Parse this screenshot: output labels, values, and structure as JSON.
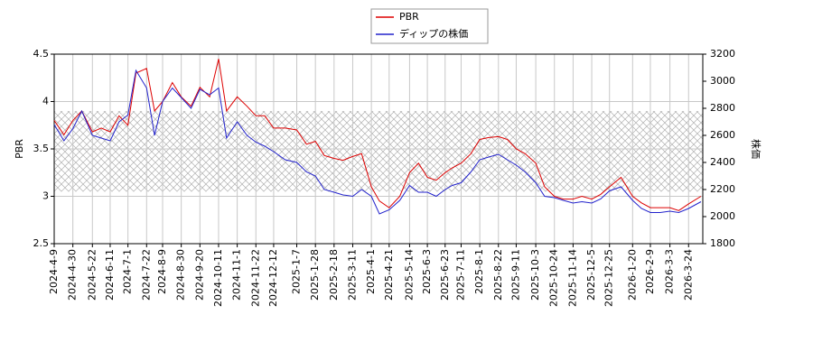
{
  "chart_data": {
    "type": "line",
    "x": [
      "2024-4-9",
      "2024-4-20",
      "2024-4-30",
      "2024-5-10",
      "2024-5-22",
      "2024-6-1",
      "2024-6-11",
      "2024-6-21",
      "2024-7-1",
      "2024-7-10",
      "2024-7-22",
      "2024-7-31",
      "2024-8-9",
      "2024-8-20",
      "2024-8-30",
      "2024-9-10",
      "2024-9-20",
      "2024-10-1",
      "2024-10-11",
      "2024-10-20",
      "2024-11-1",
      "2024-11-12",
      "2024-11-22",
      "2024-12-2",
      "2024-12-12",
      "2024-12-25",
      "2025-1-7",
      "2025-1-18",
      "2025-1-28",
      "2025-2-7",
      "2025-2-18",
      "2025-2-28",
      "2025-3-11",
      "2025-3-21",
      "2025-4-1",
      "2025-4-10",
      "2025-4-21",
      "2025-5-3",
      "2025-5-14",
      "2025-5-24",
      "2025-6-3",
      "2025-6-13",
      "2025-6-23",
      "2025-7-1",
      "2025-7-11",
      "2025-7-22",
      "2025-8-1",
      "2025-8-11",
      "2025-8-22",
      "2025-9-1",
      "2025-9-11",
      "2025-9-21",
      "2025-10-3",
      "2025-10-13",
      "2025-10-24",
      "2025-11-3",
      "2025-11-14",
      "2025-11-24",
      "2025-12-5",
      "2025-12-15",
      "2025-12-25",
      "2026-1-7",
      "2026-1-20",
      "2026-1-30",
      "2026-2-9",
      "2026-2-20",
      "2026-3-3",
      "2026-3-13",
      "2026-3-24",
      "2026-4-7"
    ],
    "series": [
      {
        "name": "PBR",
        "color": "#dd0000",
        "values": [
          3.8,
          3.65,
          3.8,
          3.9,
          3.68,
          3.72,
          3.68,
          3.85,
          3.75,
          4.3,
          4.35,
          3.9,
          4.0,
          4.2,
          4.05,
          3.95,
          4.15,
          4.05,
          4.45,
          3.9,
          4.05,
          3.95,
          3.85,
          3.85,
          3.72,
          3.72,
          3.7,
          3.55,
          3.58,
          3.43,
          3.4,
          3.38,
          3.42,
          3.45,
          3.1,
          2.95,
          2.88,
          3.0,
          3.25,
          3.35,
          3.2,
          3.17,
          3.25,
          3.3,
          3.35,
          3.45,
          3.6,
          3.62,
          3.63,
          3.6,
          3.5,
          3.45,
          3.35,
          3.1,
          3.0,
          2.97,
          2.97,
          3.0,
          2.97,
          3.02,
          3.1,
          3.2,
          3.0,
          2.93,
          2.88,
          2.88,
          2.88,
          2.85,
          2.92,
          3.0
        ]
      },
      {
        "name": "ディップの株価",
        "color": "#2222cc",
        "axis": "y2",
        "values": [
          2680,
          2560,
          2650,
          2780,
          2600,
          2580,
          2560,
          2700,
          2750,
          3080,
          2950,
          2600,
          2850,
          2950,
          2880,
          2800,
          2940,
          2900,
          2950,
          2580,
          2700,
          2600,
          2550,
          2520,
          2480,
          2420,
          2400,
          2330,
          2300,
          2200,
          2180,
          2160,
          2150,
          2200,
          2150,
          2020,
          2050,
          2120,
          2230,
          2180,
          2180,
          2150,
          2200,
          2230,
          2250,
          2330,
          2420,
          2440,
          2460,
          2420,
          2380,
          2330,
          2250,
          2150,
          2140,
          2120,
          2100,
          2110,
          2100,
          2130,
          2190,
          2220,
          2120,
          2060,
          2030,
          2030,
          2040,
          2030,
          2060,
          2110
        ]
      }
    ],
    "ylabel": "PBR",
    "y2label": "株価",
    "xlim": [
      "2024-4-9",
      "2026-4-9"
    ],
    "xticks": [
      "2024-4-9",
      "2024-4-30",
      "2024-5-22",
      "2024-6-11",
      "2024-7-1",
      "2024-7-22",
      "2024-8-9",
      "2024-8-30",
      "2024-9-20",
      "2024-10-11",
      "2024-11-1",
      "2024-11-22",
      "2024-12-12",
      "2025-1-7",
      "2025-1-28",
      "2025-2-18",
      "2025-3-11",
      "2025-4-1",
      "2025-4-21",
      "2025-5-14",
      "2025-6-3",
      "2025-6-23",
      "2025-7-11",
      "2025-8-1",
      "2025-8-22",
      "2025-9-11",
      "2025-10-3",
      "2025-10-24",
      "2025-11-14",
      "2025-12-5",
      "2025-12-25",
      "2026-1-20",
      "2026-2-9",
      "2026-3-3",
      "2026-3-24"
    ],
    "ylim": [
      2.5,
      4.5
    ],
    "yticks": [
      2.5,
      3.0,
      3.5,
      4.0,
      4.5
    ],
    "y2lim": [
      1800,
      3200
    ],
    "y2ticks": [
      1800,
      2000,
      2200,
      2400,
      2600,
      2800,
      3000,
      3200
    ],
    "shaded_range": [
      3.05,
      3.9
    ],
    "grid": true,
    "legend": "top"
  }
}
